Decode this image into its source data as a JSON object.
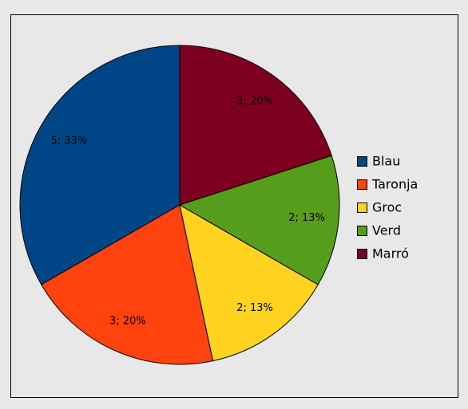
{
  "chart_data": {
    "type": "pie",
    "categories": [
      "Blau",
      "Taronja",
      "Groc",
      "Verd",
      "Marró"
    ],
    "values": [
      5,
      3,
      2,
      2,
      3
    ],
    "value_labels": [
      "5; 33%",
      "3; 20%",
      "2; 13%",
      "2; 13%",
      "3; 20%"
    ],
    "colors": [
      "#004586",
      "#ff420e",
      "#ffd320",
      "#579d1c",
      "#7e0021"
    ],
    "legend": "right"
  }
}
